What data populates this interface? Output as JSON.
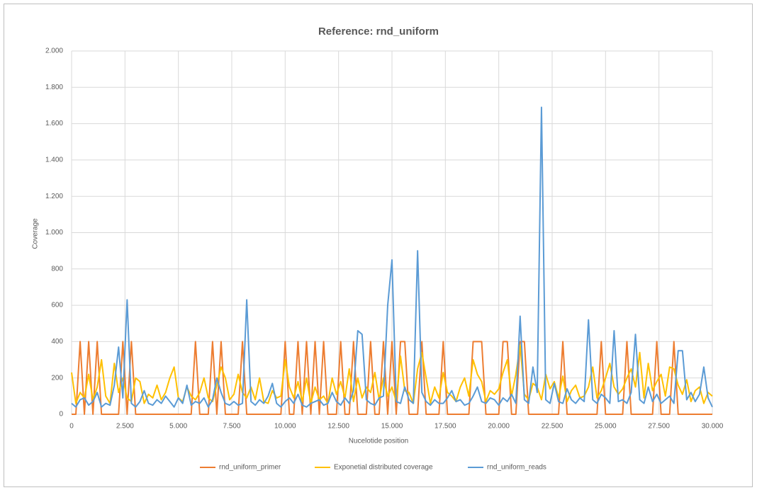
{
  "chart_data": {
    "type": "line",
    "title": "Reference: rnd_uniform",
    "x_label": "Nucelotide position",
    "y_label": "Coverage",
    "grid": true,
    "legend": "bottom",
    "xlim": [
      0,
      30000
    ],
    "ylim": [
      0,
      2000
    ],
    "xticks": [
      0,
      {
        "value": 2500,
        "label": "2.500"
      },
      {
        "value": 5000,
        "label": "5.000"
      },
      {
        "value": 7500,
        "label": "7.500"
      },
      {
        "value": 10000,
        "label": "10.000"
      },
      {
        "value": 12500,
        "label": "12.500"
      },
      {
        "value": 15000,
        "label": "15.000"
      },
      {
        "value": 17500,
        "label": "17.500"
      },
      {
        "value": 20000,
        "label": "20.000"
      },
      {
        "value": 22500,
        "label": "22.500"
      },
      {
        "value": 25000,
        "label": "25.000"
      },
      {
        "value": 27500,
        "label": "27.500"
      },
      {
        "value": 30000,
        "label": "30.000"
      }
    ],
    "yticks": [
      0,
      200,
      400,
      600,
      800,
      {
        "value": 1000,
        "label": "1.000"
      },
      {
        "value": 1200,
        "label": "1.200"
      },
      {
        "value": 1400,
        "label": "1.400"
      },
      {
        "value": 1600,
        "label": "1.600"
      },
      {
        "value": 1800,
        "label": "1.800"
      },
      {
        "value": 2000,
        "label": "2.000"
      }
    ],
    "x": [
      0,
      200,
      400,
      600,
      800,
      1000,
      1200,
      1400,
      1600,
      1800,
      2000,
      2200,
      2400,
      2600,
      2800,
      3000,
      3200,
      3400,
      3600,
      3800,
      4000,
      4200,
      4400,
      4600,
      4800,
      5000,
      5200,
      5400,
      5600,
      5800,
      6000,
      6200,
      6400,
      6600,
      6800,
      7000,
      7200,
      7400,
      7600,
      7800,
      8000,
      8200,
      8400,
      8600,
      8800,
      9000,
      9200,
      9400,
      9600,
      9800,
      10000,
      10200,
      10400,
      10600,
      10800,
      11000,
      11200,
      11400,
      11600,
      11800,
      12000,
      12200,
      12400,
      12600,
      12800,
      13000,
      13200,
      13400,
      13600,
      13800,
      14000,
      14200,
      14400,
      14600,
      14800,
      15000,
      15200,
      15400,
      15600,
      15800,
      16000,
      16200,
      16400,
      16600,
      16800,
      17000,
      17200,
      17400,
      17600,
      17800,
      18000,
      18200,
      18400,
      18600,
      18800,
      19000,
      19200,
      19400,
      19600,
      19800,
      20000,
      20200,
      20400,
      20600,
      20800,
      21000,
      21200,
      21400,
      21600,
      21800,
      22000,
      22200,
      22400,
      22600,
      22800,
      23000,
      23200,
      23400,
      23600,
      23800,
      24000,
      24200,
      24400,
      24600,
      24800,
      25000,
      25200,
      25400,
      25600,
      25800,
      26000,
      26200,
      26400,
      26600,
      26800,
      27000,
      27200,
      27400,
      27600,
      27800,
      28000,
      28200,
      28400,
      28600,
      28800,
      29000,
      29200,
      29400,
      29600,
      29800,
      30000
    ],
    "series": [
      {
        "name": "rnd_uniform_primer",
        "color": "#ED7D31",
        "values": [
          0,
          0,
          400,
          0,
          400,
          0,
          400,
          0,
          0,
          0,
          0,
          0,
          400,
          0,
          400,
          0,
          0,
          0,
          0,
          0,
          0,
          0,
          0,
          0,
          0,
          0,
          0,
          0,
          0,
          400,
          0,
          0,
          0,
          400,
          0,
          400,
          0,
          0,
          0,
          0,
          400,
          0,
          0,
          0,
          0,
          0,
          0,
          0,
          0,
          0,
          400,
          0,
          0,
          400,
          0,
          400,
          0,
          400,
          0,
          400,
          0,
          0,
          0,
          400,
          0,
          0,
          400,
          0,
          0,
          0,
          400,
          0,
          0,
          400,
          0,
          400,
          0,
          400,
          400,
          0,
          0,
          0,
          400,
          0,
          0,
          0,
          0,
          400,
          0,
          0,
          0,
          0,
          0,
          0,
          400,
          400,
          400,
          0,
          0,
          0,
          0,
          400,
          400,
          0,
          0,
          400,
          400,
          0,
          0,
          0,
          0,
          0,
          0,
          0,
          0,
          400,
          0,
          0,
          0,
          0,
          0,
          0,
          0,
          0,
          400,
          0,
          0,
          0,
          0,
          0,
          400,
          0,
          0,
          0,
          0,
          0,
          0,
          400,
          0,
          0,
          0,
          400,
          0,
          0,
          0,
          0,
          0,
          0,
          0,
          0,
          0
        ]
      },
      {
        "name": "Exponetial distributed coverage",
        "color": "#FFC000",
        "values": [
          230,
          60,
          120,
          90,
          220,
          80,
          150,
          300,
          100,
          60,
          280,
          120,
          200,
          90,
          70,
          200,
          180,
          60,
          110,
          90,
          160,
          80,
          120,
          200,
          260,
          90,
          70,
          150,
          100,
          80,
          120,
          200,
          90,
          70,
          160,
          260,
          200,
          80,
          110,
          220,
          120,
          90,
          150,
          80,
          200,
          70,
          60,
          130,
          90,
          100,
          300,
          150,
          90,
          180,
          70,
          200,
          60,
          150,
          80,
          100,
          60,
          200,
          110,
          180,
          90,
          250,
          70,
          200,
          90,
          150,
          120,
          230,
          80,
          200,
          100,
          150,
          70,
          320,
          130,
          120,
          60,
          250,
          340,
          200,
          60,
          150,
          90,
          230,
          120,
          100,
          70,
          150,
          200,
          100,
          300,
          220,
          180,
          70,
          130,
          110,
          140,
          230,
          300,
          100,
          220,
          380,
          110,
          80,
          170,
          150,
          80,
          220,
          140,
          180,
          90,
          210,
          70,
          130,
          160,
          90,
          100,
          150,
          260,
          90,
          130,
          200,
          280,
          150,
          110,
          140,
          200,
          250,
          150,
          340,
          90,
          280,
          130,
          180,
          220,
          100,
          260,
          250,
          160,
          110,
          190,
          70,
          130,
          150,
          60,
          120,
          100
        ]
      },
      {
        "name": "rnd_uniform_reads",
        "color": "#5B9BD5",
        "values": [
          60,
          40,
          80,
          90,
          50,
          70,
          120,
          40,
          60,
          50,
          160,
          370,
          90,
          630,
          60,
          40,
          70,
          130,
          60,
          50,
          80,
          60,
          100,
          70,
          40,
          90,
          60,
          160,
          50,
          70,
          60,
          90,
          40,
          80,
          200,
          120,
          60,
          50,
          70,
          50,
          60,
          630,
          70,
          50,
          80,
          60,
          100,
          170,
          60,
          40,
          70,
          90,
          60,
          110,
          50,
          40,
          60,
          70,
          80,
          50,
          60,
          120,
          70,
          50,
          90,
          60,
          130,
          460,
          440,
          80,
          60,
          50,
          90,
          100,
          600,
          850,
          70,
          60,
          150,
          80,
          60,
          900,
          120,
          70,
          50,
          80,
          60,
          60,
          90,
          130,
          70,
          80,
          50,
          60,
          100,
          150,
          70,
          60,
          90,
          80,
          50,
          90,
          70,
          110,
          60,
          540,
          80,
          60,
          260,
          120,
          1690,
          80,
          60,
          170,
          70,
          60,
          140,
          80,
          60,
          90,
          70,
          520,
          80,
          60,
          110,
          90,
          60,
          460,
          70,
          80,
          60,
          120,
          440,
          80,
          60,
          150,
          70,
          110,
          60,
          80,
          100,
          60,
          350,
          350,
          80,
          120,
          70,
          110,
          260,
          90,
          40
        ]
      }
    ]
  }
}
